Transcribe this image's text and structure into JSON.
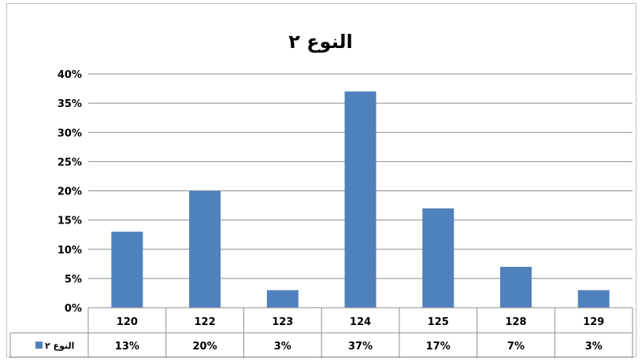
{
  "chart_data": {
    "type": "bar",
    "title": "النوع ٢",
    "categories": [
      "120",
      "122",
      "123",
      "124",
      "125",
      "128",
      "129"
    ],
    "series": [
      {
        "name": "النوع ٢",
        "values": [
          13,
          20,
          3,
          37,
          17,
          7,
          3
        ],
        "labels": [
          "13%",
          "20%",
          "3%",
          "37%",
          "17%",
          "7%",
          "3%"
        ],
        "color": "#4F81BD"
      }
    ],
    "ylim": [
      0,
      40
    ],
    "yticks": [
      0,
      5,
      10,
      15,
      20,
      25,
      30,
      35,
      40
    ],
    "ytick_labels": [
      "0%",
      "5%",
      "10%",
      "15%",
      "20%",
      "25%",
      "30%",
      "35%",
      "40%"
    ],
    "grid": true,
    "data_table": true,
    "legend": "data-table-left"
  }
}
